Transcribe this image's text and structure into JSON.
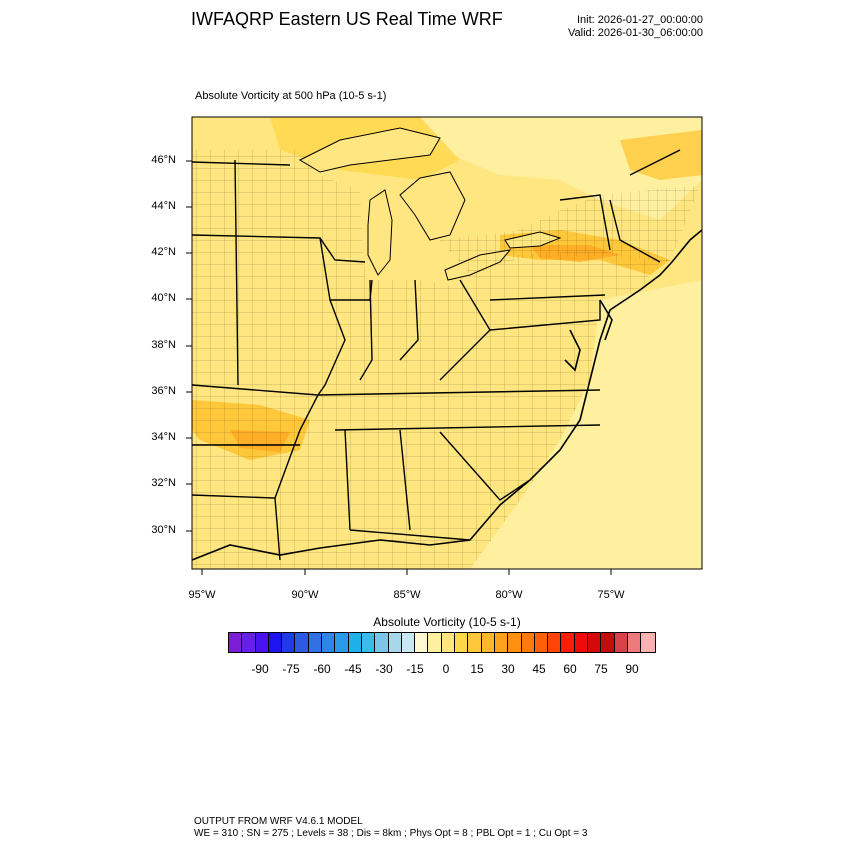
{
  "title": "IWFAQRP Eastern US Real Time WRF",
  "init": "Init: 2026-01-27_00:00:00",
  "valid": "Valid: 2026-01-30_06:00:00",
  "field_title": "Absolute Vorticity at 500 hPa   (10-5 s-1)",
  "lat_labels": [
    "46°N",
    "44°N",
    "42°N",
    "40°N",
    "38°N",
    "36°N",
    "34°N",
    "32°N",
    "30°N"
  ],
  "lon_labels": [
    "95°W",
    "90°W",
    "85°W",
    "80°W",
    "75°W"
  ],
  "colorbar": {
    "title": "Absolute Vorticity  (10-5 s-1)",
    "labels": [
      "-90",
      "-75",
      "-60",
      "-45",
      "-30",
      "-15",
      "0",
      "15",
      "30",
      "45",
      "60",
      "75",
      "90"
    ],
    "colors": [
      "#7a1fd6",
      "#6a1fe8",
      "#4a14f0",
      "#1e14f0",
      "#1e3ce6",
      "#2c5ae0",
      "#3270e6",
      "#2f86e8",
      "#2a9ae8",
      "#1fb0ea",
      "#39bcea",
      "#7ac6e8",
      "#a8d6ea",
      "#c8e8f4",
      "#fff8d0",
      "#fff0a0",
      "#ffe680",
      "#ffd84a",
      "#ffc83a",
      "#ffb82a",
      "#ffa21c",
      "#ff9010",
      "#ff7a0a",
      "#ff6008",
      "#ff4406",
      "#ff1c06",
      "#f00a0a",
      "#d40a0a",
      "#c00e0e",
      "#d8404a",
      "#ee7a7e",
      "#ffb0b0"
    ]
  },
  "footer_line1": "OUTPUT FROM WRF V4.6.1 MODEL",
  "footer_line2": "WE = 310 ; SN = 275 ; Levels = 38 ; Dis = 8km ; Phys Opt = 8 ; PBL Opt = 1 ; Cu Opt = 3"
}
